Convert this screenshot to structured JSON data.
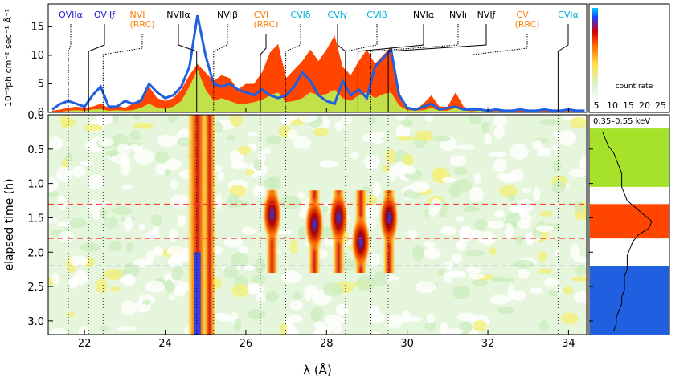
{
  "chart_data": [
    {
      "type": "area",
      "panel": "spectrum",
      "ylabel": "10⁻³ph cm⁻² sec⁻¹ Å⁻¹",
      "xlim": [
        21.1,
        34.45
      ],
      "ylim": [
        0,
        19
      ],
      "yticks": [
        0,
        5,
        10,
        15
      ],
      "x": [
        21.2,
        21.4,
        21.6,
        21.8,
        22.0,
        22.2,
        22.4,
        22.6,
        22.8,
        23.0,
        23.2,
        23.4,
        23.6,
        23.8,
        24.0,
        24.2,
        24.4,
        24.6,
        24.8,
        25.0,
        25.2,
        25.4,
        25.6,
        25.8,
        26.0,
        26.2,
        26.4,
        26.6,
        26.8,
        27.0,
        27.2,
        27.4,
        27.6,
        27.8,
        28.0,
        28.2,
        28.4,
        28.6,
        28.8,
        29.0,
        29.2,
        29.4,
        29.6,
        29.8,
        30.0,
        30.2,
        30.4,
        30.6,
        30.8,
        31.0,
        31.2,
        31.4,
        31.6,
        31.8,
        32.0,
        32.2,
        32.4,
        32.6,
        32.8,
        33.0,
        33.2,
        33.4,
        33.6,
        33.8,
        34.0,
        34.2,
        34.4
      ],
      "series": [
        {
          "color": "#ff4500",
          "values": [
            0.3,
            0.5,
            0.8,
            1.0,
            0.8,
            1.0,
            1.5,
            0.8,
            1.2,
            0.8,
            1.5,
            2.5,
            4.5,
            2.5,
            2.0,
            2.5,
            4.0,
            6.5,
            8.5,
            7.0,
            5.5,
            6.5,
            6.0,
            4.0,
            5.0,
            5.0,
            7.0,
            10.5,
            12.0,
            6.0,
            7.5,
            9.0,
            11.0,
            9.0,
            11.0,
            13.5,
            8.0,
            6.5,
            9.0,
            11.0,
            8.5,
            10.0,
            11.5,
            3.5,
            1.0,
            0.5,
            1.5,
            3.0,
            1.0,
            1.0,
            3.5,
            1.0,
            0.5,
            0.8,
            0.3,
            0.5,
            0.3,
            0.5,
            0.3,
            0.3,
            0.5,
            0.3,
            0.5,
            0.3,
            0.5,
            0.3,
            0.3
          ]
        },
        {
          "color": "#c2e04a",
          "values": [
            0.1,
            0.1,
            0.3,
            0.4,
            0.3,
            0.5,
            0.6,
            0.3,
            0.4,
            0.3,
            0.4,
            0.8,
            1.5,
            0.8,
            0.6,
            1.0,
            2.0,
            4.5,
            7.5,
            4.0,
            2.0,
            2.5,
            2.0,
            1.5,
            1.5,
            1.8,
            2.2,
            3.0,
            3.5,
            1.8,
            2.0,
            2.5,
            3.5,
            3.0,
            3.2,
            4.0,
            2.5,
            2.0,
            3.0,
            3.5,
            2.5,
            3.2,
            3.5,
            1.2,
            0.4,
            0.3,
            0.4,
            0.8,
            0.3,
            0.3,
            0.8,
            0.3,
            0.2,
            0.3,
            0.1,
            0.2,
            0.1,
            0.2,
            0.1,
            0.1,
            0.2,
            0.1,
            0.2,
            0.1,
            0.2,
            0.1,
            0.1
          ]
        },
        {
          "color": "#1f5fe0",
          "values": [
            0.5,
            1.5,
            2.0,
            1.5,
            1.0,
            3.0,
            4.5,
            1.0,
            1.0,
            2.0,
            1.5,
            2.0,
            5.0,
            3.5,
            2.5,
            3.0,
            4.5,
            8.0,
            17.0,
            10.0,
            5.0,
            4.5,
            5.0,
            4.0,
            3.5,
            3.0,
            4.0,
            3.0,
            2.5,
            3.0,
            4.5,
            7.0,
            5.5,
            3.0,
            2.0,
            1.5,
            5.5,
            3.0,
            4.0,
            2.5,
            8.0,
            9.5,
            11.0,
            3.0,
            0.8,
            0.5,
            1.0,
            1.5,
            0.5,
            0.8,
            1.0,
            0.5,
            0.5,
            0.5,
            0.3,
            0.5,
            0.3,
            0.3,
            0.5,
            0.3,
            0.3,
            0.5,
            0.3,
            0.3,
            0.5,
            0.3,
            0.3
          ]
        }
      ],
      "annotations": [
        {
          "label": "OVIIα",
          "x": 21.6,
          "color": "#1a1ad0"
        },
        {
          "label": "OVIIƒ",
          "x": 22.1,
          "color": "#1a1ad0"
        },
        {
          "label": "NVI",
          "label2": "(RRC)",
          "x": 22.46,
          "color": "#ff7f00"
        },
        {
          "label": "NVIIα",
          "x": 24.78,
          "color": "#000000"
        },
        {
          "label": "NVIβ",
          "x": 25.2,
          "color": "#000000"
        },
        {
          "label": "CVI",
          "label2": "(RRC)",
          "x": 26.36,
          "color": "#ff7f00"
        },
        {
          "label": "CVIδ",
          "x": 26.99,
          "color": "#00b4d8"
        },
        {
          "label": "CVIγ",
          "x": 28.47,
          "color": "#00b4d8"
        },
        {
          "label": "CVIβ",
          "x": 28.47,
          "color": "#00b4d8"
        },
        {
          "label": "NVIα",
          "x": 28.78,
          "color": "#000000"
        },
        {
          "label": "NVIı",
          "x": 29.08,
          "color": "#000000"
        },
        {
          "label": "NVIƒ",
          "x": 29.53,
          "color": "#000000"
        },
        {
          "label": "CV",
          "label2": "(RRC)",
          "x": 31.63,
          "color": "#ff7f00"
        },
        {
          "label": "CVIα",
          "x": 33.74,
          "color": "#00b4d8"
        }
      ]
    },
    {
      "type": "heatmap",
      "panel": "dynamic-spectrum",
      "xlabel": "λ (Å)",
      "ylabel": "elapsed time  (h)",
      "xlim": [
        21.1,
        34.45
      ],
      "ylim": [
        0.0,
        3.2
      ],
      "xticks": [
        22,
        24,
        26,
        28,
        30,
        32,
        34
      ],
      "yticks": [
        0.0,
        0.5,
        1.0,
        1.5,
        2.0,
        2.5,
        3.0
      ],
      "yticklabels": [
        "0.0",
        "0.5",
        "1.0",
        "1.5",
        "2.0",
        "2.5",
        "3.0"
      ],
      "line_columns": [
        24.8,
        25.1,
        26.65,
        27.7,
        28.3,
        28.85,
        29.55
      ],
      "hot_spots": [
        {
          "x": 26.65,
          "t": 1.45
        },
        {
          "x": 27.7,
          "t": 1.6
        },
        {
          "x": 28.3,
          "t": 1.5
        },
        {
          "x": 28.85,
          "t": 1.85
        },
        {
          "x": 29.55,
          "t": 1.5
        }
      ],
      "dashed_lines": [
        {
          "t": 1.3,
          "color": "#ff2a2a"
        },
        {
          "t": 1.8,
          "color": "#ff2a2a"
        },
        {
          "t": 2.2,
          "color": "#1a1ad0"
        }
      ]
    },
    {
      "type": "line",
      "panel": "light-curve",
      "colorbar_label": "count rate",
      "colorbar_ticks": [
        5,
        10,
        15,
        20,
        25
      ],
      "band_label": "0.35–0.55 keV",
      "bands": [
        {
          "from": 0.2,
          "to": 1.05,
          "color": "#a6e22a"
        },
        {
          "from": 1.3,
          "to": 1.8,
          "color": "#ff4500"
        },
        {
          "from": 2.2,
          "to": 3.2,
          "color": "#1f5fe0"
        }
      ],
      "time": [
        0.25,
        0.35,
        0.45,
        0.55,
        0.65,
        0.75,
        0.85,
        0.95,
        1.05,
        1.15,
        1.25,
        1.35,
        1.45,
        1.55,
        1.65,
        1.75,
        1.85,
        1.95,
        2.05,
        2.15,
        2.25,
        2.35,
        2.45,
        2.55,
        2.65,
        2.75,
        2.85,
        2.95,
        3.05,
        3.15
      ],
      "count_rate": [
        7,
        8,
        9,
        11,
        12,
        13,
        14,
        14,
        14,
        15,
        16,
        19,
        22,
        25,
        24,
        20,
        18,
        17,
        16,
        16,
        16,
        15,
        15,
        15,
        14,
        14,
        13,
        12,
        12,
        11
      ]
    }
  ]
}
